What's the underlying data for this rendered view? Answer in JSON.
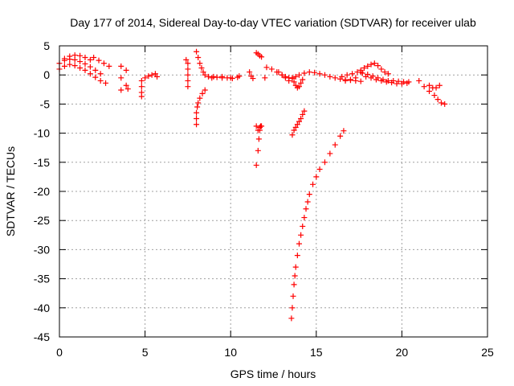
{
  "chart_data": {
    "type": "scatter",
    "title": "Day 177 of 2014, Sidereal Day-to-day VTEC variation (SDTVAR) for receiver ulab",
    "xlabel": "GPS time / hours",
    "ylabel": "SDTVAR / TECUs",
    "xlim": [
      0,
      25
    ],
    "ylim": [
      -45,
      5
    ],
    "xticks": [
      "0",
      "5",
      "10",
      "15",
      "20",
      "25"
    ],
    "yticks": [
      "5",
      "0",
      "-5",
      "-10",
      "-15",
      "-20",
      "-25",
      "-30",
      "-35",
      "-40",
      "-45"
    ],
    "grid": true,
    "legend": "none",
    "marker": "plus",
    "color": "#ff0000",
    "series": [
      {
        "x": [
          0.0,
          0.3,
          0.6,
          0.9,
          1.2,
          1.5,
          1.8,
          2.1,
          2.4,
          2.7
        ],
        "y": [
          1.0,
          1.5,
          1.8,
          1.6,
          1.2,
          0.8,
          0.2,
          -0.4,
          -1.0,
          -1.4
        ]
      },
      {
        "x": [
          0.0,
          0.3,
          0.6,
          0.9,
          1.2,
          1.5,
          1.8,
          2.1,
          2.4
        ],
        "y": [
          2.0,
          2.5,
          2.7,
          2.6,
          2.3,
          1.9,
          1.4,
          0.8,
          0.2
        ]
      },
      {
        "x": [
          0.3,
          0.6,
          0.9,
          1.2,
          1.5,
          1.8
        ],
        "y": [
          2.8,
          3.2,
          3.4,
          3.3,
          3.0,
          2.6
        ]
      },
      {
        "x": [
          2.0,
          2.3,
          2.6,
          2.9
        ],
        "y": [
          3.0,
          2.5,
          2.0,
          1.5
        ]
      },
      {
        "x": [
          3.6,
          3.6,
          3.6,
          3.9,
          3.9,
          4.0
        ],
        "y": [
          1.5,
          -0.5,
          -2.6,
          0.8,
          -1.8,
          -2.4
        ]
      },
      {
        "x": [
          4.8,
          4.8,
          4.8,
          4.8,
          5.0,
          5.2,
          5.4,
          5.6,
          5.7
        ],
        "y": [
          -1.0,
          -2.0,
          -3.0,
          -3.7,
          -0.5,
          -0.2,
          0.0,
          0.2,
          -0.3
        ]
      },
      {
        "x": [
          7.4,
          7.5,
          7.5,
          7.5,
          7.5,
          7.5
        ],
        "y": [
          2.6,
          2.0,
          1.0,
          0.0,
          -1.0,
          -2.0
        ]
      },
      {
        "x": [
          8.0,
          8.0,
          8.0,
          8.05,
          8.1,
          8.2,
          8.35,
          8.5
        ],
        "y": [
          -8.5,
          -7.5,
          -6.5,
          -5.5,
          -4.8,
          -4.0,
          -3.2,
          -2.6
        ]
      },
      {
        "x": [
          8.0,
          8.1,
          8.2,
          8.3,
          8.4,
          8.5,
          8.7,
          8.9,
          9.2,
          9.5,
          9.8,
          10.1,
          10.4
        ],
        "y": [
          4.0,
          3.0,
          2.0,
          1.2,
          0.5,
          0.0,
          -0.3,
          -0.5,
          -0.4,
          -0.3,
          -0.5,
          -0.6,
          -0.4
        ]
      },
      {
        "x": [
          9.0,
          9.5,
          10.0,
          10.5
        ],
        "y": [
          -0.3,
          -0.5,
          -0.5,
          -0.2
        ]
      },
      {
        "x": [
          11.1,
          11.2,
          11.3
        ],
        "y": [
          0.5,
          -0.2,
          -0.6
        ]
      },
      {
        "x": [
          11.5,
          11.6,
          11.65,
          11.7,
          11.75
        ],
        "y": [
          -15.5,
          -13.0,
          -11.0,
          -9.5,
          -8.8
        ]
      },
      {
        "x": [
          11.5,
          11.6,
          11.7,
          11.8
        ],
        "y": [
          -8.8,
          -9.5,
          -9.0,
          -8.8
        ]
      },
      {
        "x": [
          11.5,
          11.6,
          11.7,
          11.8
        ],
        "y": [
          3.8,
          3.6,
          3.3,
          3.1
        ]
      },
      {
        "x": [
          12.0,
          12.1,
          12.4,
          12.7,
          13.0,
          13.2,
          13.4,
          13.6,
          13.8,
          14.0,
          14.3,
          14.6,
          14.9,
          15.2,
          15.5,
          15.8,
          16.1,
          16.4,
          16.7,
          17.0,
          17.3,
          17.6
        ],
        "y": [
          -0.5,
          1.3,
          1.0,
          0.5,
          0.0,
          -0.3,
          -0.5,
          -0.6,
          -0.3,
          0.0,
          0.3,
          0.5,
          0.4,
          0.2,
          0.0,
          -0.3,
          -0.5,
          -0.7,
          -0.8,
          -0.9,
          -1.0,
          -1.1
        ]
      },
      {
        "x": [
          12.8,
          13.0,
          13.2,
          13.4
        ],
        "y": [
          0.5,
          0.0,
          -0.5,
          -1.0
        ]
      },
      {
        "x": [
          13.6,
          13.7,
          13.8,
          13.9,
          14.0,
          14.1,
          14.2
        ],
        "y": [
          -0.5,
          -1.2,
          -1.8,
          -2.2,
          -2.0,
          -1.4,
          -0.8
        ]
      },
      {
        "x": [
          13.6,
          13.7,
          13.8,
          13.9,
          14.0,
          14.1,
          14.2,
          14.3
        ],
        "y": [
          -10.3,
          -9.5,
          -9.0,
          -8.5,
          -8.0,
          -7.5,
          -6.8,
          -6.2
        ]
      },
      {
        "x": [
          13.55,
          13.6,
          13.65,
          13.7,
          13.75,
          13.8,
          13.9,
          14.0,
          14.1,
          14.2,
          14.3,
          14.4,
          14.5,
          14.6,
          14.8,
          15.0,
          15.2,
          15.5,
          15.8,
          16.1,
          16.4,
          16.6
        ],
        "y": [
          -41.8,
          -40.0,
          -38.0,
          -36.0,
          -34.5,
          -33.0,
          -31.0,
          -29.0,
          -27.5,
          -26.0,
          -24.5,
          -23.0,
          -21.8,
          -20.5,
          -18.8,
          -17.5,
          -16.2,
          -15.0,
          -13.5,
          -12.0,
          -10.5,
          -9.6
        ]
      },
      {
        "x": [
          16.7,
          17.0,
          17.3,
          17.6,
          17.9,
          18.2,
          18.5,
          18.8,
          19.1,
          19.4,
          19.7,
          20.0,
          20.3
        ],
        "y": [
          -1.0,
          -0.8,
          -0.5,
          0.5,
          -0.3,
          -0.5,
          -0.8,
          -1.0,
          -1.2,
          -1.3,
          -1.5,
          -1.5,
          -1.4
        ]
      },
      {
        "x": [
          16.5,
          16.8,
          17.1,
          17.4,
          17.7,
          18.0,
          18.3,
          18.6,
          18.9,
          19.2,
          19.5,
          19.8,
          20.1,
          20.4
        ],
        "y": [
          -0.3,
          0.0,
          0.2,
          0.5,
          0.3,
          0.1,
          -0.2,
          -0.5,
          -0.8,
          -1.0,
          -1.0,
          -1.1,
          -1.2,
          -1.2
        ]
      },
      {
        "x": [
          17.6,
          17.8,
          18.0,
          18.2,
          18.4,
          18.6,
          18.8,
          19.0,
          19.2
        ],
        "y": [
          0.8,
          1.2,
          1.5,
          1.8,
          2.0,
          1.6,
          1.0,
          0.5,
          0.2
        ]
      },
      {
        "x": [
          21.0,
          21.3,
          21.6,
          21.9,
          22.1,
          22.3,
          22.5
        ],
        "y": [
          -1.0,
          -2.0,
          -2.8,
          -3.5,
          -4.2,
          -4.8,
          -5.0
        ]
      },
      {
        "x": [
          21.6,
          21.8,
          22.0,
          22.2
        ],
        "y": [
          -1.8,
          -2.2,
          -2.2,
          -1.8
        ]
      }
    ]
  }
}
